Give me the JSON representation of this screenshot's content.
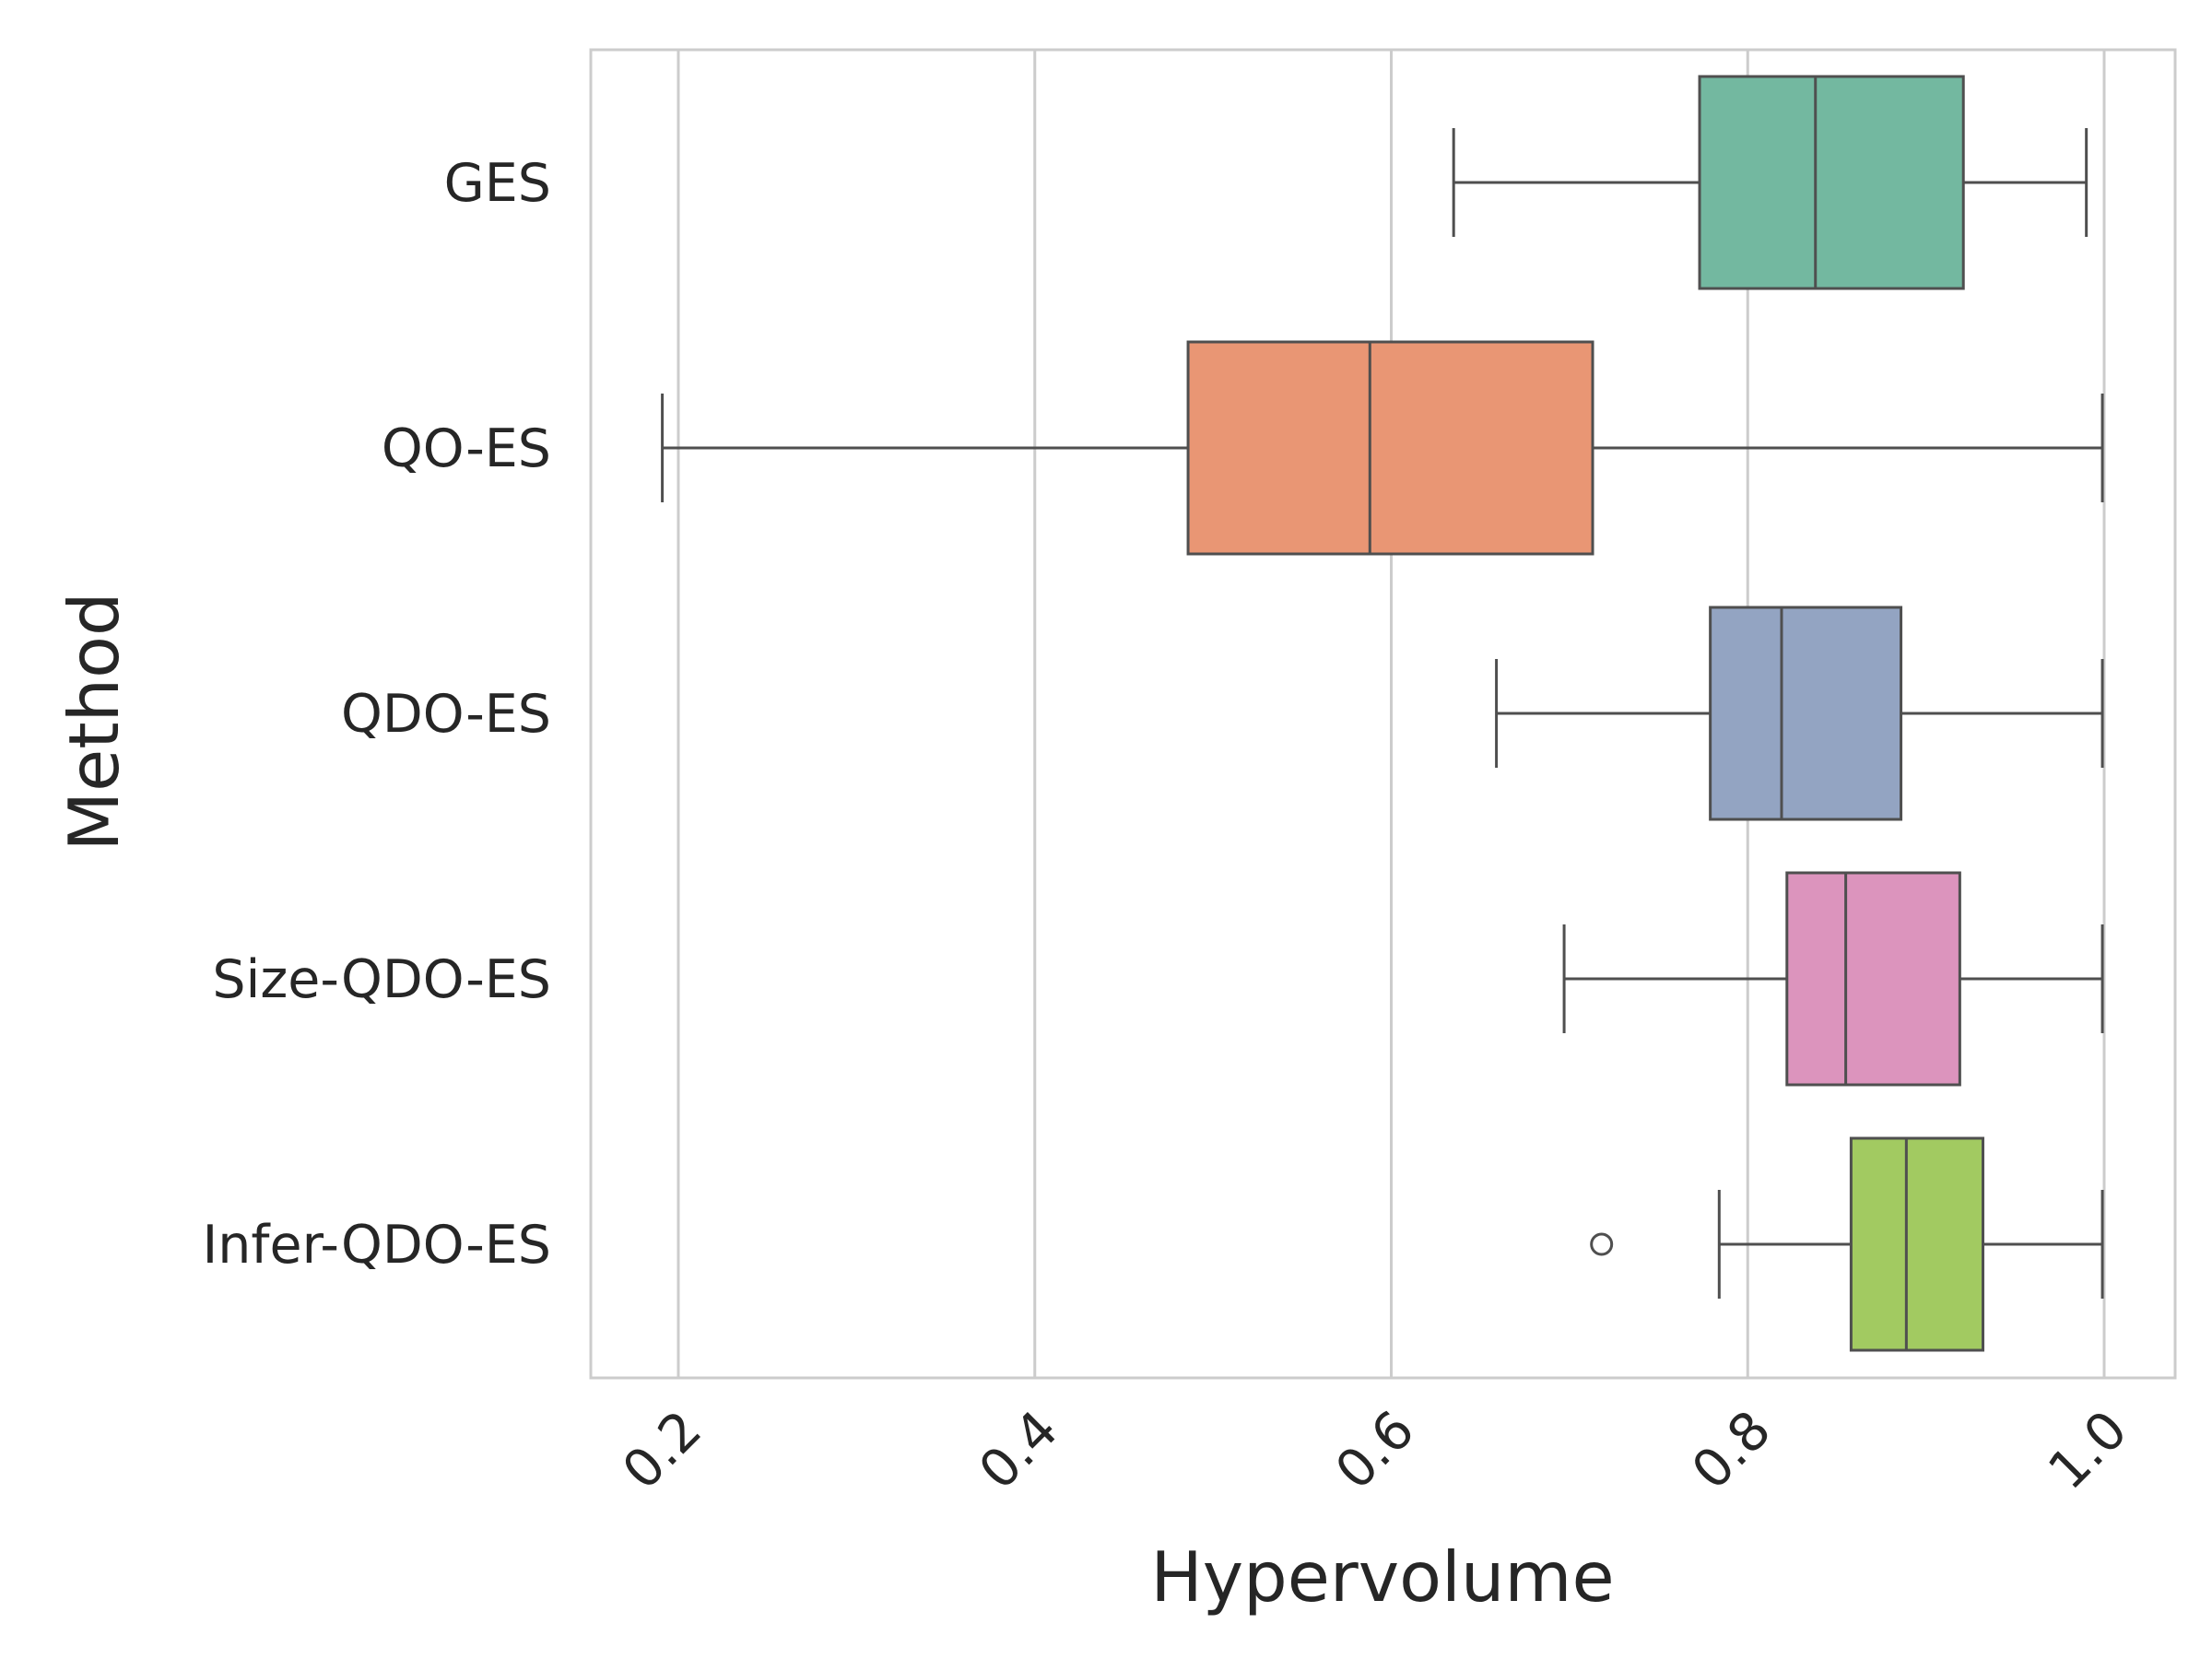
{
  "chart_data": {
    "type": "boxplot",
    "orientation": "horizontal",
    "title": "",
    "xlabel": "Hypervolume",
    "ylabel": "Method",
    "xlim": [
      0.15,
      1.0
    ],
    "xticks": [
      0.2,
      0.4,
      0.6,
      0.8,
      1.0
    ],
    "xtick_labels": [
      "0.2",
      "0.4",
      "0.6",
      "0.8",
      "1.0"
    ],
    "grid": "vertical",
    "categories": [
      "GES",
      "QO-ES",
      "QDO-ES",
      "Size-QDO-ES",
      "Infer-QDO-ES"
    ],
    "series": [
      {
        "category": "GES",
        "whisker_low": 0.635,
        "q1": 0.773,
        "median": 0.838,
        "q3": 0.921,
        "whisker_high": 0.99,
        "outliers": [],
        "color": "#73b8a0"
      },
      {
        "category": "QO-ES",
        "whisker_low": 0.191,
        "q1": 0.486,
        "median": 0.588,
        "q3": 0.713,
        "whisker_high": 0.999,
        "outliers": [],
        "color": "#e99674"
      },
      {
        "category": "QDO-ES",
        "whisker_low": 0.659,
        "q1": 0.779,
        "median": 0.819,
        "q3": 0.886,
        "whisker_high": 0.999,
        "outliers": [],
        "color": "#93a4c2"
      },
      {
        "category": "Size-QDO-ES",
        "whisker_low": 0.697,
        "q1": 0.822,
        "median": 0.855,
        "q3": 0.919,
        "whisker_high": 0.999,
        "outliers": [],
        "color": "#dc94bd"
      },
      {
        "category": "Infer-QDO-ES",
        "whisker_low": 0.784,
        "q1": 0.858,
        "median": 0.889,
        "q3": 0.932,
        "whisker_high": 0.999,
        "outliers": [
          0.718
        ],
        "color": "#a2ca61"
      }
    ]
  }
}
